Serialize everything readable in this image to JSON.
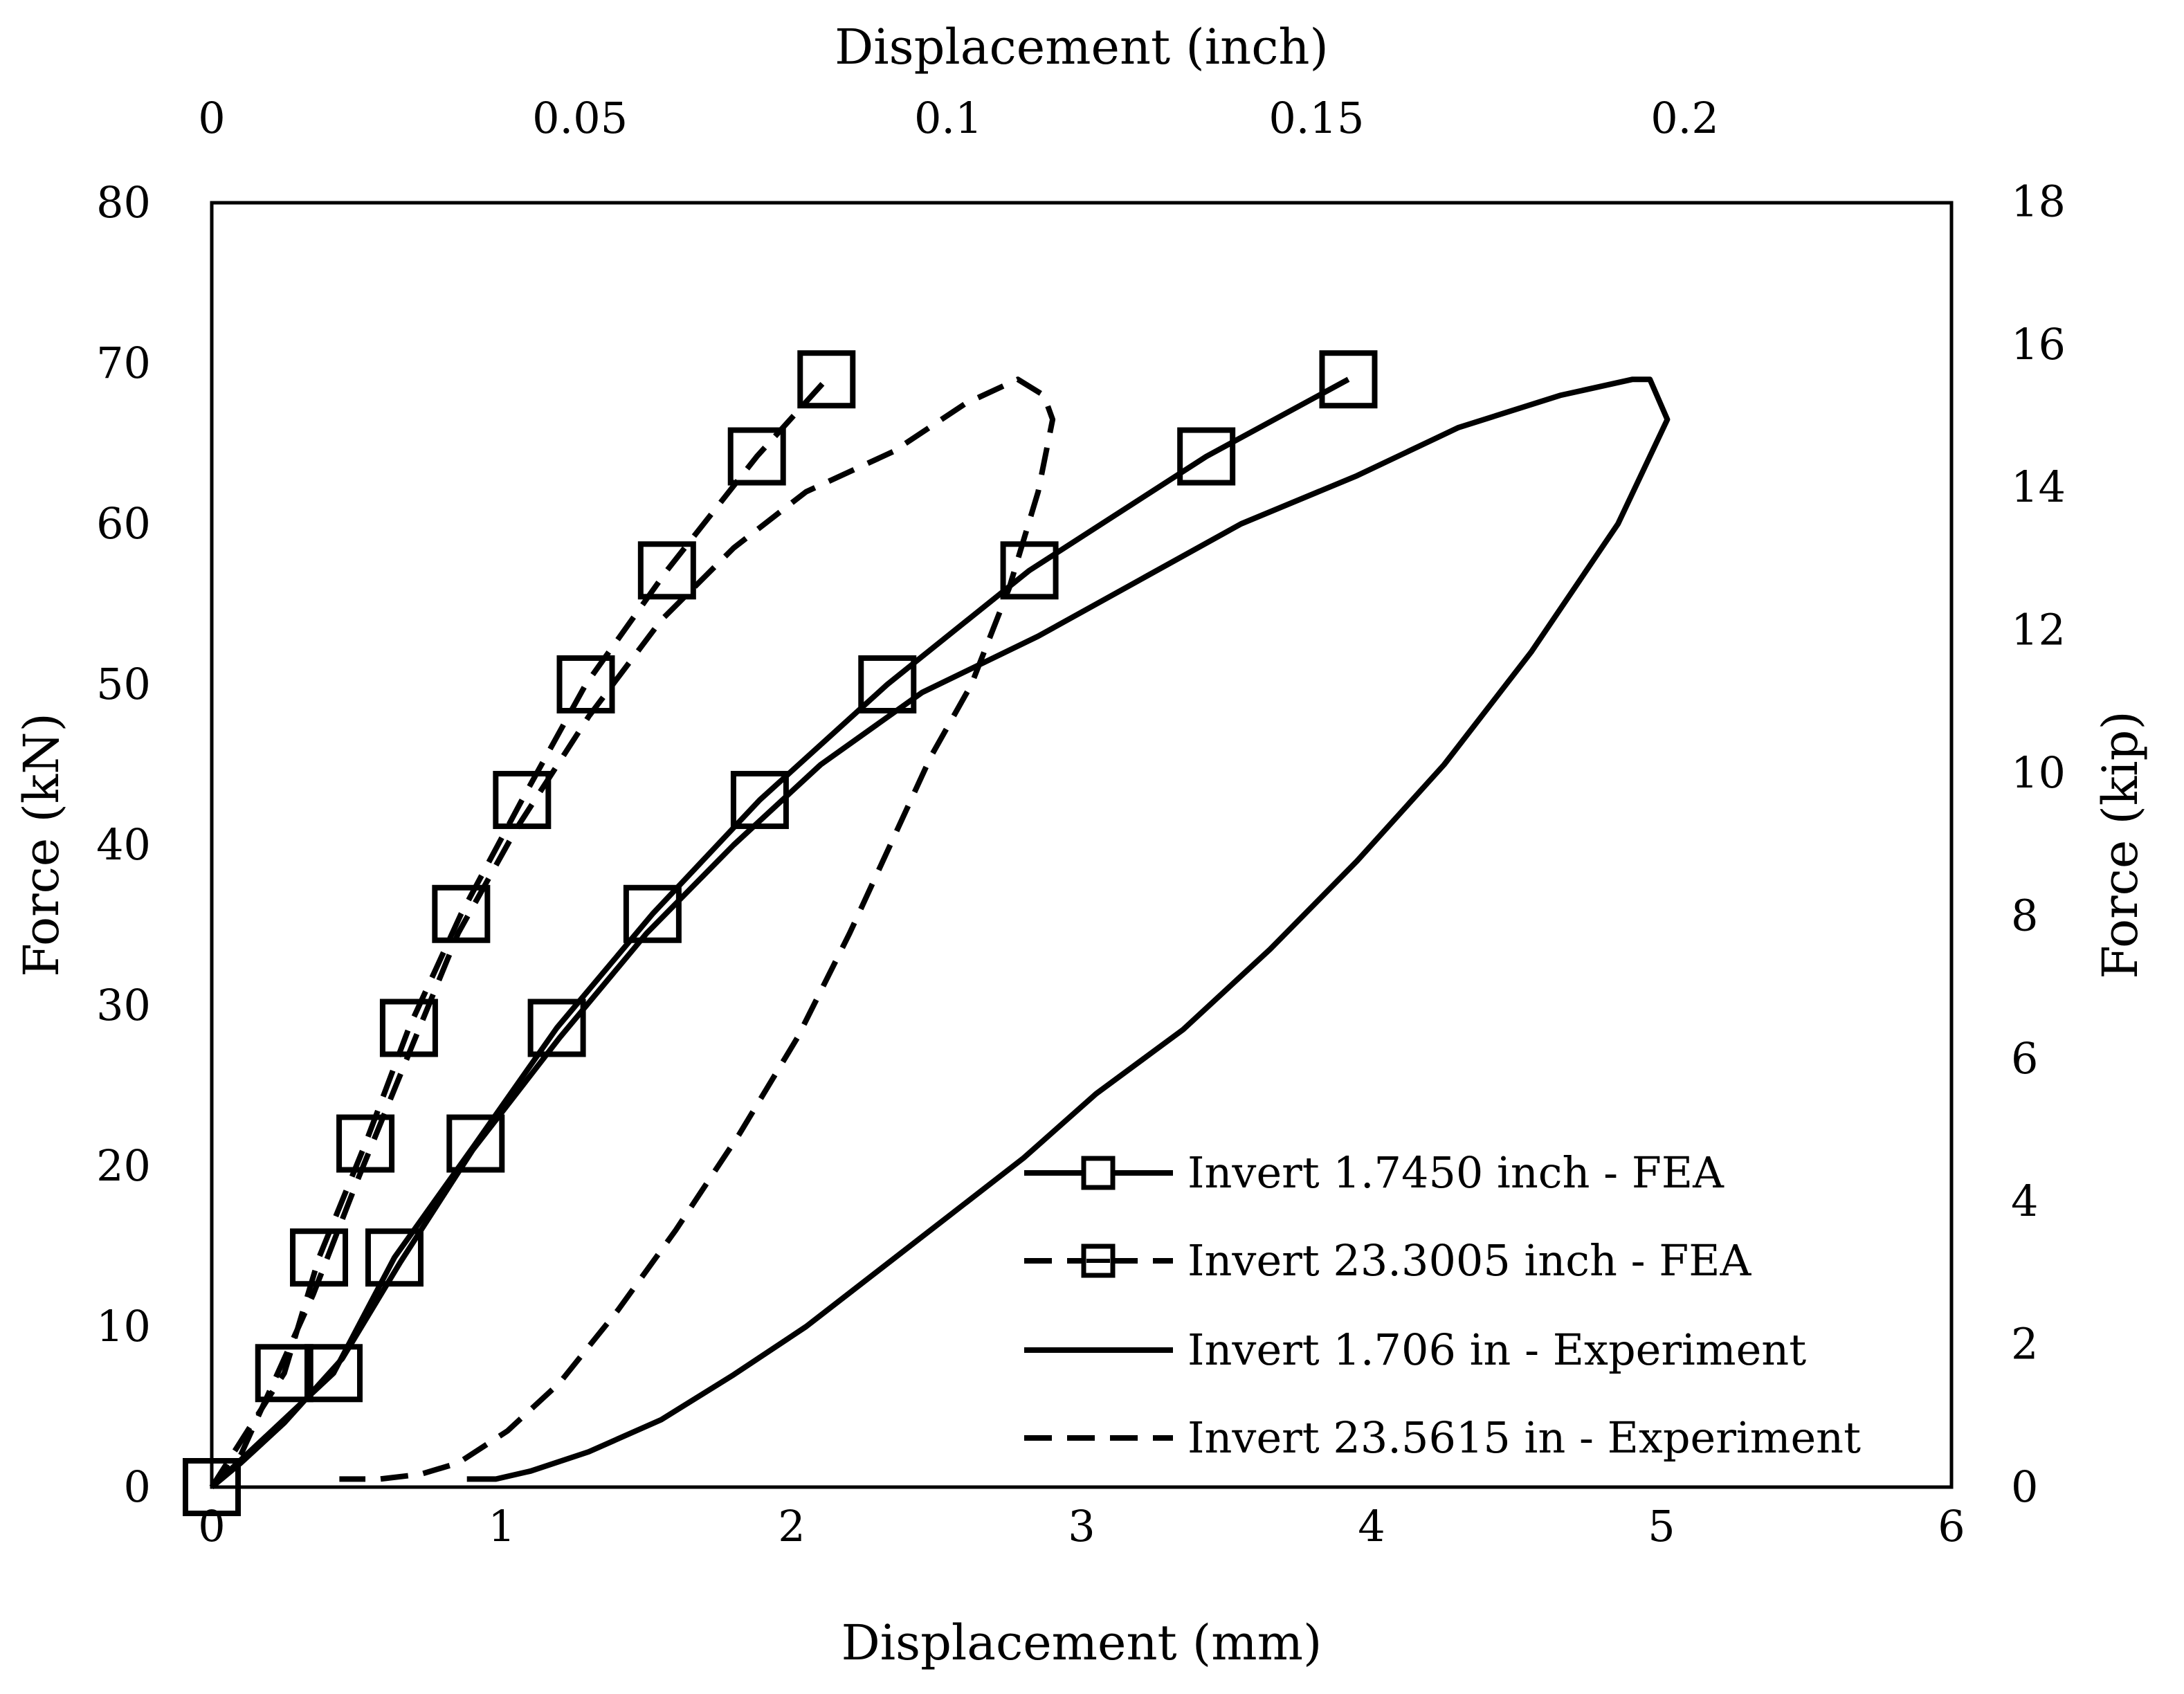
{
  "chart_data": {
    "type": "line",
    "axes": {
      "x_bottom": {
        "label": "Displacement (mm)",
        "range": [
          0,
          6
        ],
        "ticks": [
          "0",
          "1",
          "2",
          "3",
          "4",
          "5",
          "6"
        ]
      },
      "x_top": {
        "label": "Displacement (inch)",
        "range": [
          0,
          0.23622
        ],
        "ticks": [
          "0",
          "0.05",
          "0.1",
          "0.15",
          "0.2"
        ],
        "tick_values": [
          0,
          0.05,
          0.1,
          0.15,
          0.2
        ]
      },
      "y_left": {
        "label": "Force (kN)",
        "range": [
          0,
          80
        ],
        "ticks": [
          "0",
          "10",
          "20",
          "30",
          "40",
          "50",
          "60",
          "70",
          "80"
        ]
      },
      "y_right": {
        "label": "Force (kip)",
        "range": [
          0,
          17.9847
        ],
        "ticks": [
          "0",
          "2",
          "4",
          "6",
          "8",
          "10",
          "12",
          "14",
          "16",
          "18"
        ],
        "tick_values": [
          0,
          2,
          4,
          6,
          8,
          10,
          12,
          14,
          16,
          18
        ]
      }
    },
    "grid": false,
    "legend_position": "bottom-right",
    "series": [
      {
        "name": "Invert 1.7450 inch - FEA",
        "style": "solid",
        "marker": "square",
        "x": [
          0,
          0.42,
          0.63,
          0.91,
          1.19,
          1.52,
          1.89,
          2.33,
          2.82,
          3.43,
          3.92
        ],
        "y": [
          0,
          7.1,
          14.3,
          21.4,
          28.6,
          35.7,
          42.8,
          50.0,
          57.1,
          64.2,
          69.0
        ]
      },
      {
        "name": "Invert 23.3005 inch - FEA",
        "style": "dashed",
        "marker": "square",
        "x": [
          0,
          0.25,
          0.37,
          0.53,
          0.68,
          0.86,
          1.07,
          1.29,
          1.57,
          1.88,
          2.12
        ],
        "y": [
          0,
          7.1,
          14.3,
          21.4,
          28.6,
          35.7,
          42.8,
          50.0,
          57.1,
          64.2,
          69.0
        ]
      },
      {
        "name": "Invert 1.706 in - Experiment",
        "style": "solid",
        "marker": "none",
        "x": [
          0,
          0.1,
          0.25,
          0.45,
          0.65,
          0.9,
          1.2,
          1.5,
          1.8,
          2.1,
          2.45,
          2.85,
          3.2,
          3.55,
          3.95,
          4.3,
          4.65,
          4.9,
          4.96,
          5.02,
          4.85,
          4.55,
          4.25,
          3.95,
          3.65,
          3.35,
          3.05,
          2.8,
          2.55,
          2.3,
          2.05,
          1.8,
          1.55,
          1.3,
          1.1,
          0.98,
          0.88
        ],
        "y": [
          0,
          1.5,
          4,
          8,
          14,
          21,
          28,
          34.5,
          40,
          45,
          49.5,
          53,
          56.5,
          60,
          63,
          66,
          68,
          69,
          69,
          66.5,
          60,
          52,
          45,
          39,
          33.5,
          28.5,
          24.5,
          20.5,
          17,
          13.5,
          10,
          7,
          4.2,
          2.2,
          1,
          0.5,
          0.5
        ]
      },
      {
        "name": "Invert 23.5615 in - Experiment",
        "style": "dashed",
        "marker": "none",
        "x": [
          0,
          0.1,
          0.2,
          0.35,
          0.5,
          0.68,
          0.85,
          1.05,
          1.3,
          1.55,
          1.8,
          2.05,
          2.35,
          2.6,
          2.78,
          2.87,
          2.9,
          2.85,
          2.75,
          2.62,
          2.48,
          2.34,
          2.2,
          2.02,
          1.82,
          1.6,
          1.4,
          1.2,
          1.02,
          0.85,
          0.72,
          0.58,
          0.52,
          0.44
        ],
        "y": [
          0,
          2,
          6,
          12,
          19,
          27,
          34.5,
          41,
          48,
          54,
          58.5,
          62,
          64.5,
          67.5,
          69,
          68,
          66.5,
          62,
          56,
          50,
          45.5,
          40,
          34.5,
          28,
          22,
          16,
          11,
          6.5,
          3.5,
          1.5,
          0.8,
          0.5,
          0.5,
          0.5
        ]
      }
    ]
  }
}
